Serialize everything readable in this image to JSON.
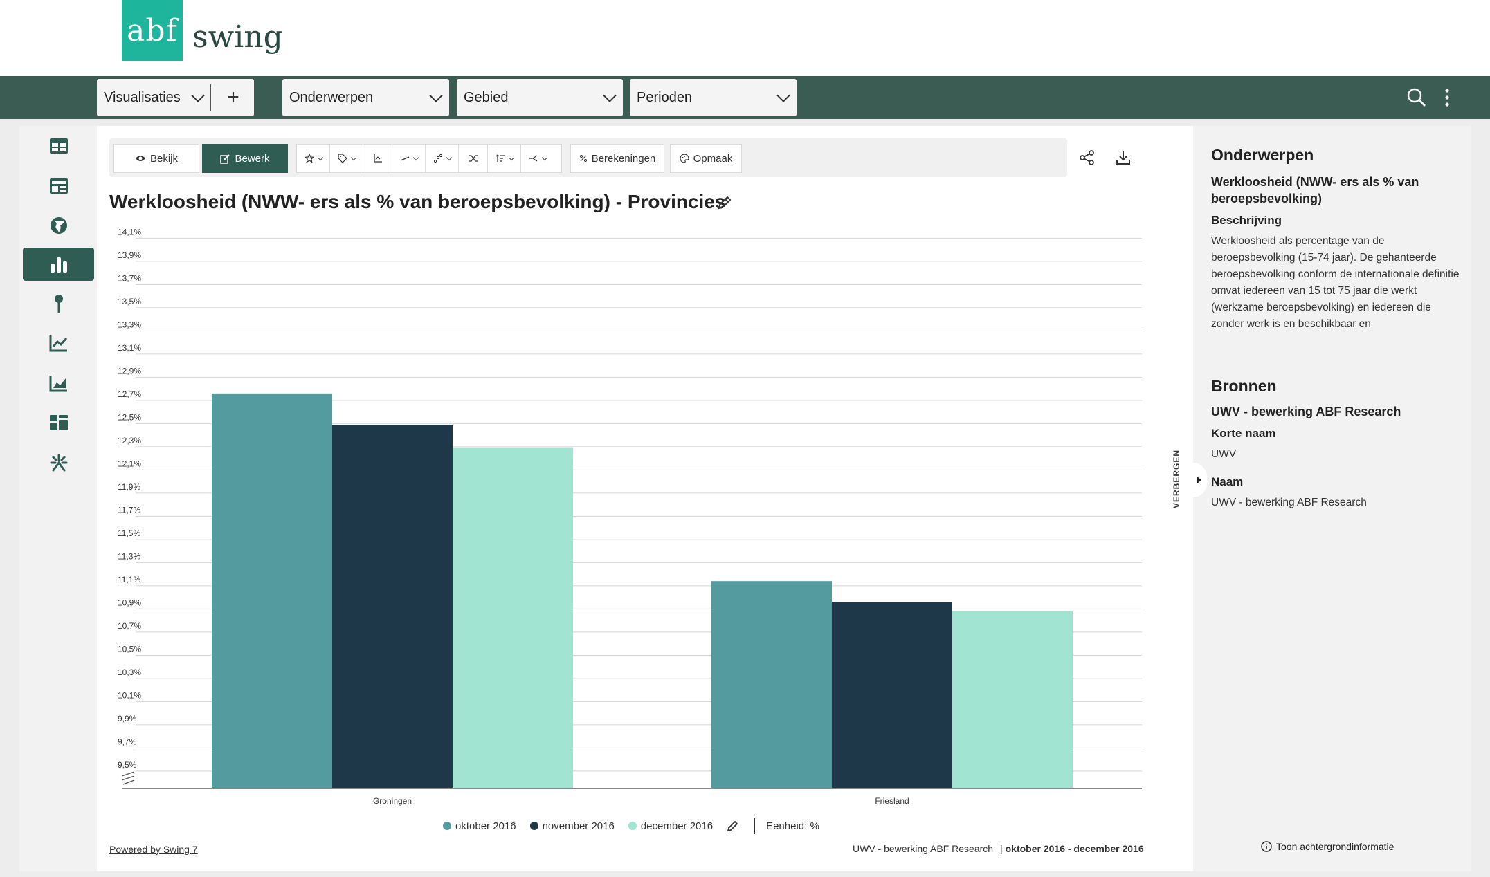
{
  "header": {
    "logo_mark": "abf",
    "logo_word": "swing"
  },
  "navbar": {
    "visualisaties": "Visualisaties",
    "add": "+",
    "onderwerpen": "Onderwerpen",
    "gebied": "Gebied",
    "perioden": "Perioden",
    "search_icon": "search-icon",
    "menu_icon": "more-vertical-icon"
  },
  "sidebar": {
    "items": [
      {
        "name": "table-icon",
        "active": false
      },
      {
        "name": "dashboard-icon",
        "active": false
      },
      {
        "name": "globe-icon",
        "active": false
      },
      {
        "name": "bar-chart-icon",
        "active": true
      },
      {
        "name": "map-pin-icon",
        "active": false
      },
      {
        "name": "line-chart-icon",
        "active": false
      },
      {
        "name": "area-chart-icon",
        "active": false
      },
      {
        "name": "widgets-icon",
        "active": false
      },
      {
        "name": "sparkle-icon",
        "active": false
      }
    ]
  },
  "toolbar": {
    "view_label": "Bekijk",
    "edit_label": "Bewerk",
    "calc_label": "Berekeningen",
    "format_label": "Opmaak"
  },
  "chart_title": "Werkloosheid (NWW- ers als % van beroepsbevolking) - Provincies",
  "chart_data": {
    "type": "bar",
    "title": "Werkloosheid (NWW- ers als % van beroepsbevolking) - Provincies",
    "categories": [
      "Groningen",
      "Friesland"
    ],
    "series": [
      {
        "name": "oktober 2016",
        "color": "#549b9f",
        "values": [
          12.76,
          11.14
        ]
      },
      {
        "name": "november 2016",
        "color": "#1e384a",
        "values": [
          12.49,
          10.96
        ]
      },
      {
        "name": "december 2016",
        "color": "#a2e4d2",
        "values": [
          12.29,
          10.88
        ]
      }
    ],
    "ylim": [
      9.35,
      14.15
    ],
    "yticks": [
      "14,1%",
      "13,9%",
      "13,7%",
      "13,5%",
      "13,3%",
      "13,1%",
      "12,9%",
      "12,7%",
      "12,5%",
      "12,3%",
      "12,1%",
      "11,9%",
      "11,7%",
      "11,5%",
      "11,3%",
      "11,1%",
      "10,9%",
      "10,7%",
      "10,5%",
      "10,3%",
      "10,1%",
      "9,9%",
      "9,7%",
      "9,5%"
    ],
    "ytick_values": [
      14.1,
      13.9,
      13.7,
      13.5,
      13.3,
      13.1,
      12.9,
      12.7,
      12.5,
      12.3,
      12.1,
      11.9,
      11.7,
      11.5,
      11.3,
      11.1,
      10.9,
      10.7,
      10.5,
      10.3,
      10.1,
      9.9,
      9.7,
      9.5
    ],
    "grid": true,
    "axis_break": true,
    "legend": "bottom"
  },
  "legend": {
    "items": [
      {
        "label": "oktober 2016",
        "color": "#549b9f"
      },
      {
        "label": "november 2016",
        "color": "#1e384a"
      },
      {
        "label": "december 2016",
        "color": "#a2e4d2"
      }
    ],
    "unit": "Eenheid: %"
  },
  "footer": {
    "powered": "Powered by Swing 7",
    "source": "UWV - bewerking ABF Research",
    "period": "oktober 2016 - december 2016"
  },
  "right_panel": {
    "hide_label": "VERBERGEN",
    "onderwerpen_title": "Onderwerpen",
    "topic_name": "Werkloosheid (NWW- ers als % van beroepsbevolking)",
    "beschrijving_label": "Beschrijving",
    "beschrijving_text": "Werkloosheid als percentage van de beroepsbevolking (15-74 jaar). De gehanteerde beroepsbevolking conform de internationale definitie omvat iedereen van 15 tot 75 jaar die werkt (werkzame beroepsbevolking) en iedereen die zonder werk is en beschikbaar en",
    "bronnen_title": "Bronnen",
    "bron_name": "UWV - bewerking ABF Research",
    "korte_naam_label": "Korte naam",
    "korte_naam_value": "UWV",
    "naam_label": "Naam",
    "naam_value": "UWV - bewerking ABF Research",
    "toon_label": "Toon achtergrondinformatie"
  }
}
